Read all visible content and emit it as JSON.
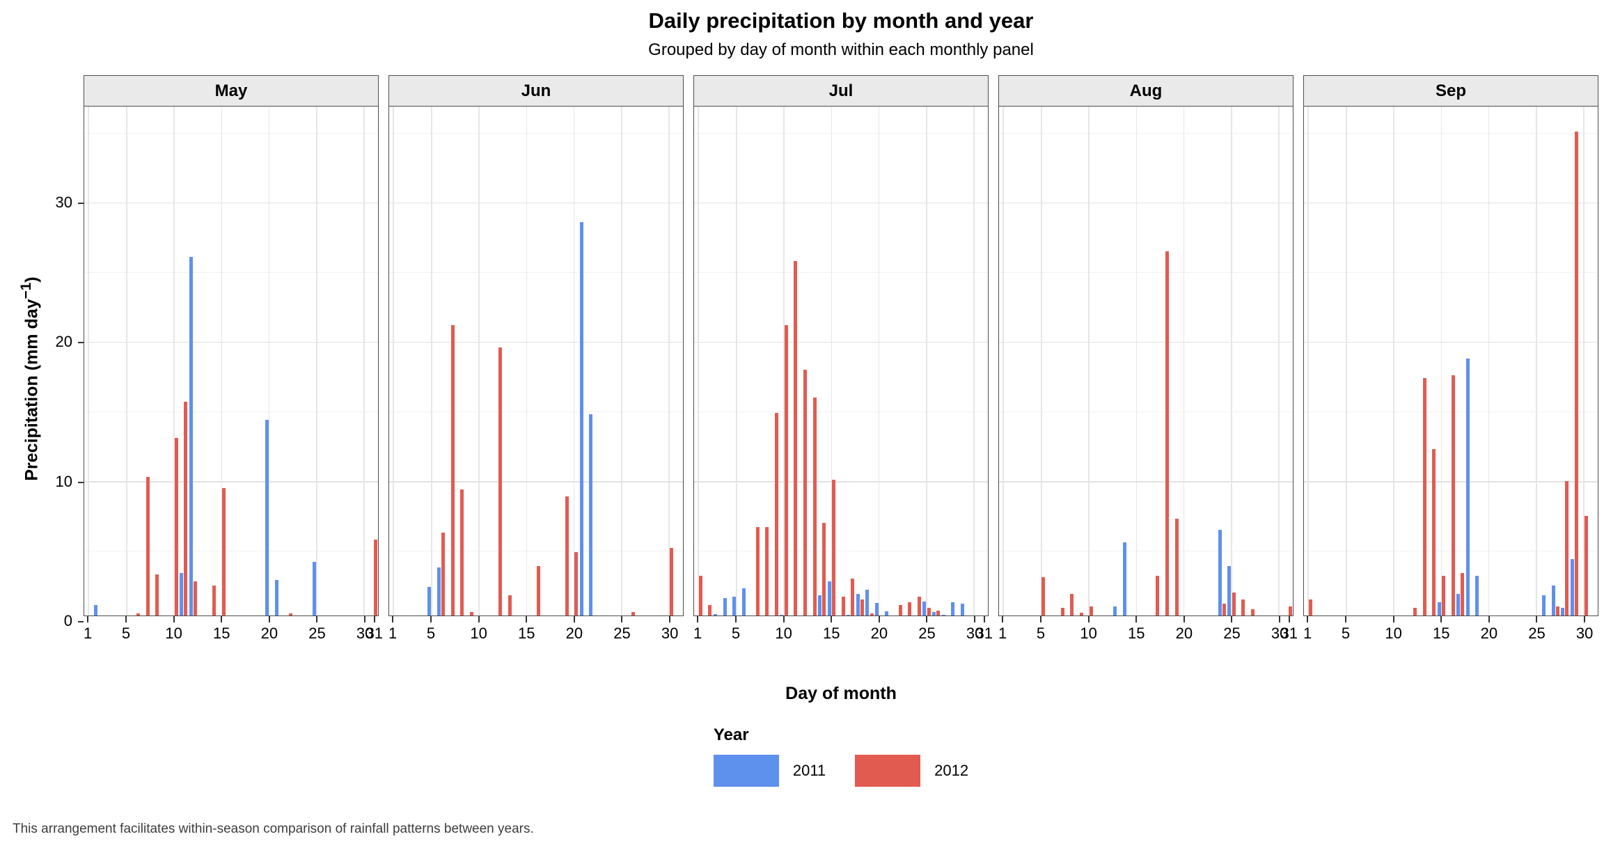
{
  "page_title": "Daily precipitation by month and year",
  "subtitle": "Grouped by day of month within each monthly panel",
  "caption": "This arrangement facilitates within-season comparison of rainfall patterns between years.",
  "colors": {
    "year_2011": "#5E90EE",
    "year_2012": "#E25B50",
    "strip_bg": "#EAEAEA",
    "panel_border": "#4D4D4D",
    "gridline_major": "#E2E2E2"
  },
  "legend": {
    "title": "Year",
    "items": [
      {
        "label": "2011",
        "color_key": "year_2011"
      },
      {
        "label": "2012",
        "color_key": "year_2012"
      }
    ]
  },
  "x_axis": {
    "title": "Day of month",
    "tick_days": [
      1,
      5,
      10,
      15,
      20,
      25,
      30
    ]
  },
  "y_axis": {
    "title_main": "Precipitation (mm day",
    "title_sup": "−1",
    "title_close": ")",
    "ticks": [
      0,
      10,
      20,
      30
    ],
    "minor_ticks": [
      5,
      15,
      25,
      35
    ]
  },
  "chart_data": {
    "type": "bar",
    "grouping": "dodged bars by year, faceted by month",
    "xlabel": "Day of month",
    "ylabel": "Precipitation (mm day^-1)",
    "x_range_days": [
      1,
      31
    ],
    "ylim": [
      0,
      36.9
    ],
    "legend_position": "bottom",
    "series_names": [
      "2011",
      "2012"
    ],
    "facets": [
      {
        "month": "May",
        "days": 31,
        "values_2011": [
          0,
          1.1,
          0.25,
          0,
          0.15,
          0,
          0,
          0,
          0,
          0,
          3.4,
          26.1,
          0.25,
          0,
          0,
          0,
          0,
          0,
          0.1,
          14.4,
          2.9,
          0.15,
          0,
          0.1,
          4.2,
          0.3,
          0,
          0,
          0,
          0,
          0
        ],
        "values_2012": [
          0,
          0,
          0,
          0.1,
          0.3,
          0.5,
          10.3,
          3.3,
          0.15,
          13.1,
          15.7,
          2.8,
          0.1,
          2.5,
          9.5,
          0,
          0,
          0,
          0,
          0,
          0.35,
          0.5,
          0,
          0,
          0,
          0,
          0,
          0,
          0,
          0.1,
          5.8
        ]
      },
      {
        "month": "Jun",
        "days": 30,
        "values_2011": [
          0,
          0,
          0,
          0,
          2.4,
          3.8,
          0.3,
          0.1,
          0,
          0,
          0,
          0,
          0,
          0,
          0,
          0,
          0,
          0,
          0.1,
          0,
          28.6,
          14.8,
          0.15,
          0.1,
          0,
          0,
          0,
          0.1,
          0,
          0.3
        ],
        "values_2012": [
          0,
          0,
          0,
          0,
          0,
          6.3,
          21.2,
          9.4,
          0.6,
          0,
          0,
          19.6,
          1.8,
          0.1,
          0.35,
          3.9,
          0.2,
          0.15,
          8.9,
          4.9,
          0,
          0.15,
          0,
          0,
          0,
          0.6,
          0.15,
          0.25,
          0.15,
          5.2
        ]
      },
      {
        "month": "Jul",
        "days": 31,
        "values_2011": [
          0,
          0.35,
          0.45,
          1.6,
          1.7,
          2.3,
          0.1,
          0.1,
          0.1,
          0.4,
          0,
          0.25,
          0,
          1.8,
          2.8,
          0.35,
          0.4,
          1.9,
          2.2,
          1.25,
          0.65,
          0.2,
          0.1,
          0,
          1.35,
          0.6,
          0.4,
          1.3,
          1.2,
          0.1,
          0
        ],
        "values_2012": [
          3.2,
          1.1,
          0.1,
          0.1,
          0.1,
          0.2,
          6.7,
          6.7,
          14.9,
          21.2,
          25.8,
          18.0,
          16.0,
          7.0,
          10.1,
          1.7,
          3.0,
          1.5,
          0.5,
          0.2,
          0.2,
          1.1,
          1.3,
          1.7,
          0.9,
          0.7,
          0,
          0.05,
          0,
          0,
          0.05
        ]
      },
      {
        "month": "Aug",
        "days": 31,
        "values_2011": [
          0.12,
          0,
          0,
          0,
          0,
          0,
          0,
          0,
          0,
          0,
          0,
          0,
          1.0,
          5.6,
          0,
          0,
          0,
          0.2,
          0.1,
          0.2,
          0,
          0,
          0.1,
          6.5,
          3.9,
          0.25,
          0,
          0,
          0.1,
          0,
          0
        ],
        "values_2012": [
          0,
          0,
          0,
          0,
          3.1,
          0.1,
          0.9,
          1.9,
          0.55,
          1.0,
          0.25,
          0.1,
          0,
          0,
          0.1,
          0.15,
          3.2,
          26.5,
          7.3,
          0.1,
          0.15,
          0.1,
          0,
          1.2,
          2.0,
          1.5,
          0.8,
          0.1,
          0,
          0.1,
          1.0
        ]
      },
      {
        "month": "Sep",
        "days": 30,
        "values_2011": [
          0,
          0.1,
          0.25,
          0.15,
          0,
          0,
          0,
          0,
          0,
          0,
          0,
          0,
          0,
          0.1,
          1.3,
          0.1,
          1.9,
          18.8,
          3.2,
          0,
          0,
          0.1,
          0,
          0,
          0,
          1.8,
          2.5,
          0.9,
          4.4,
          0.1
        ],
        "values_2012": [
          1.5,
          0.35,
          0,
          0,
          0,
          0,
          0,
          0,
          0,
          0,
          0,
          0.9,
          17.4,
          12.3,
          3.2,
          17.6,
          3.4,
          0.1,
          0.05,
          0,
          0,
          0,
          0.1,
          0,
          0,
          0.2,
          1.0,
          10.0,
          35.1,
          7.5
        ]
      }
    ]
  }
}
